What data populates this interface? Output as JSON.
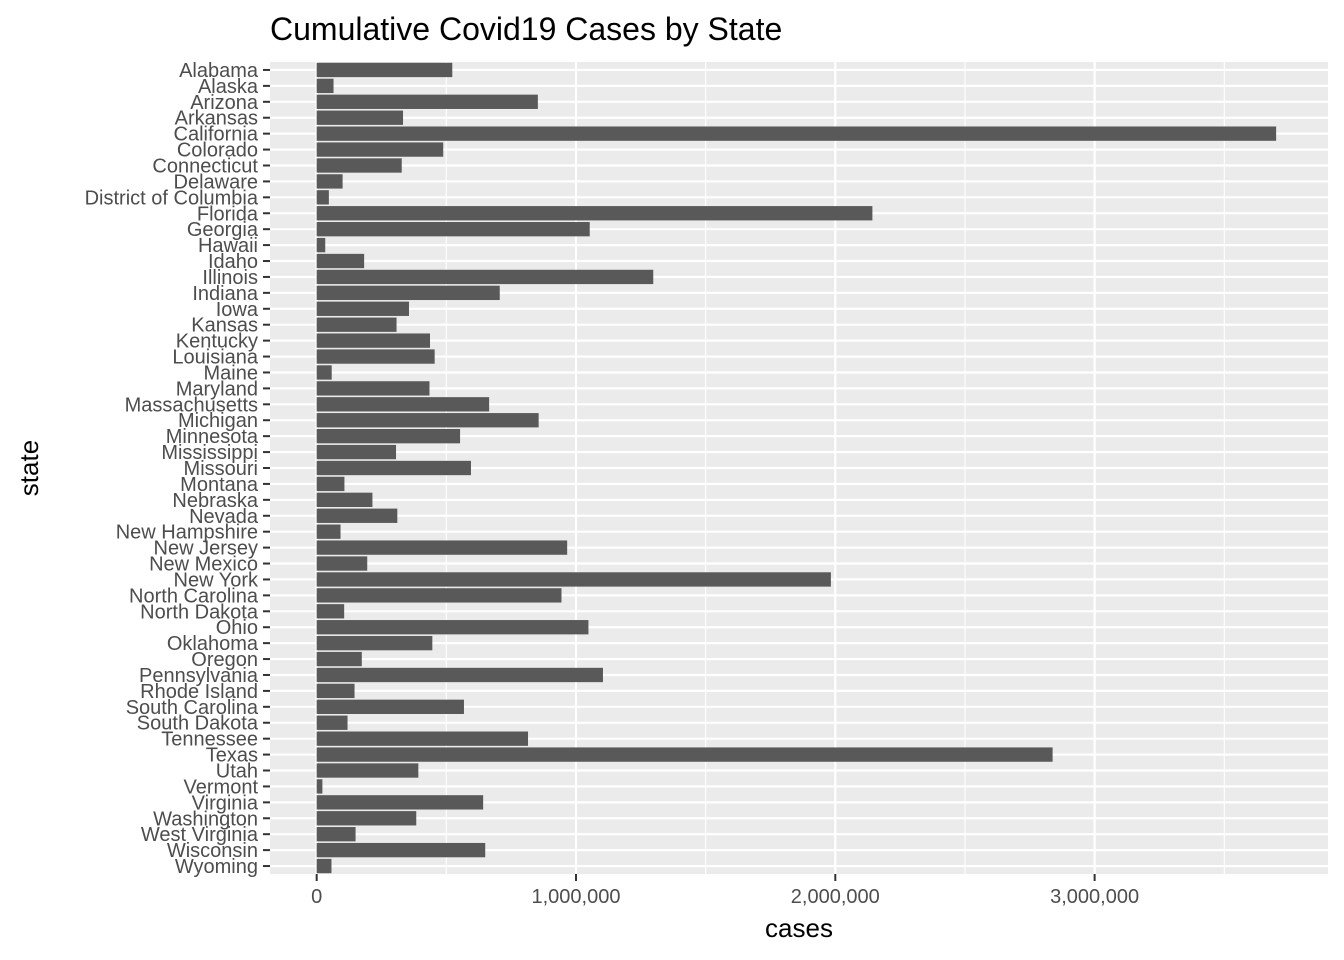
{
  "chart_data": {
    "type": "bar",
    "orientation": "horizontal",
    "title": "Cumulative Covid19 Cases by State",
    "xlabel": "cases",
    "ylabel": "state",
    "xlim": [
      -180000,
      3900000
    ],
    "xticks": [
      0,
      1000000,
      2000000,
      3000000
    ],
    "xtick_labels": [
      "0",
      "1,000,000",
      "2,000,000",
      "3,000,000"
    ],
    "grid": true,
    "colors": {
      "panel": "#ebebeb",
      "grid": "#ffffff",
      "bar": "#595959",
      "tick": "#333333",
      "tick_label": "#4d4d4d"
    },
    "categories": [
      "Alabama",
      "Alaska",
      "Arizona",
      "Arkansas",
      "California",
      "Colorado",
      "Connecticut",
      "Delaware",
      "District of Columbia",
      "Florida",
      "Georgia",
      "Hawaii",
      "Idaho",
      "Illinois",
      "Indiana",
      "Iowa",
      "Kansas",
      "Kentucky",
      "Louisiana",
      "Maine",
      "Maryland",
      "Massachusetts",
      "Michigan",
      "Minnesota",
      "Mississippi",
      "Missouri",
      "Montana",
      "Nebraska",
      "Nevada",
      "New Hampshire",
      "New Jersey",
      "New Mexico",
      "New York",
      "North Carolina",
      "North Dakota",
      "Ohio",
      "Oklahoma",
      "Oregon",
      "Pennsylvania",
      "Rhode Island",
      "South Carolina",
      "South Dakota",
      "Tennessee",
      "Texas",
      "Utah",
      "Vermont",
      "Virginia",
      "Washington",
      "West Virginia",
      "Wisconsin",
      "Wyoming"
    ],
    "values": [
      523000,
      65000,
      853000,
      333000,
      3700000,
      488000,
      328000,
      100000,
      47000,
      2143000,
      1053000,
      33000,
      183000,
      1298000,
      706000,
      356000,
      308000,
      437000,
      455000,
      58000,
      435000,
      665000,
      856000,
      553000,
      306000,
      595000,
      107000,
      215000,
      311000,
      92000,
      966000,
      195000,
      1983000,
      944000,
      106000,
      1048000,
      446000,
      174000,
      1104000,
      146000,
      568000,
      119000,
      815000,
      2838000,
      392000,
      22000,
      642000,
      384000,
      150000,
      650000,
      57000
    ]
  }
}
